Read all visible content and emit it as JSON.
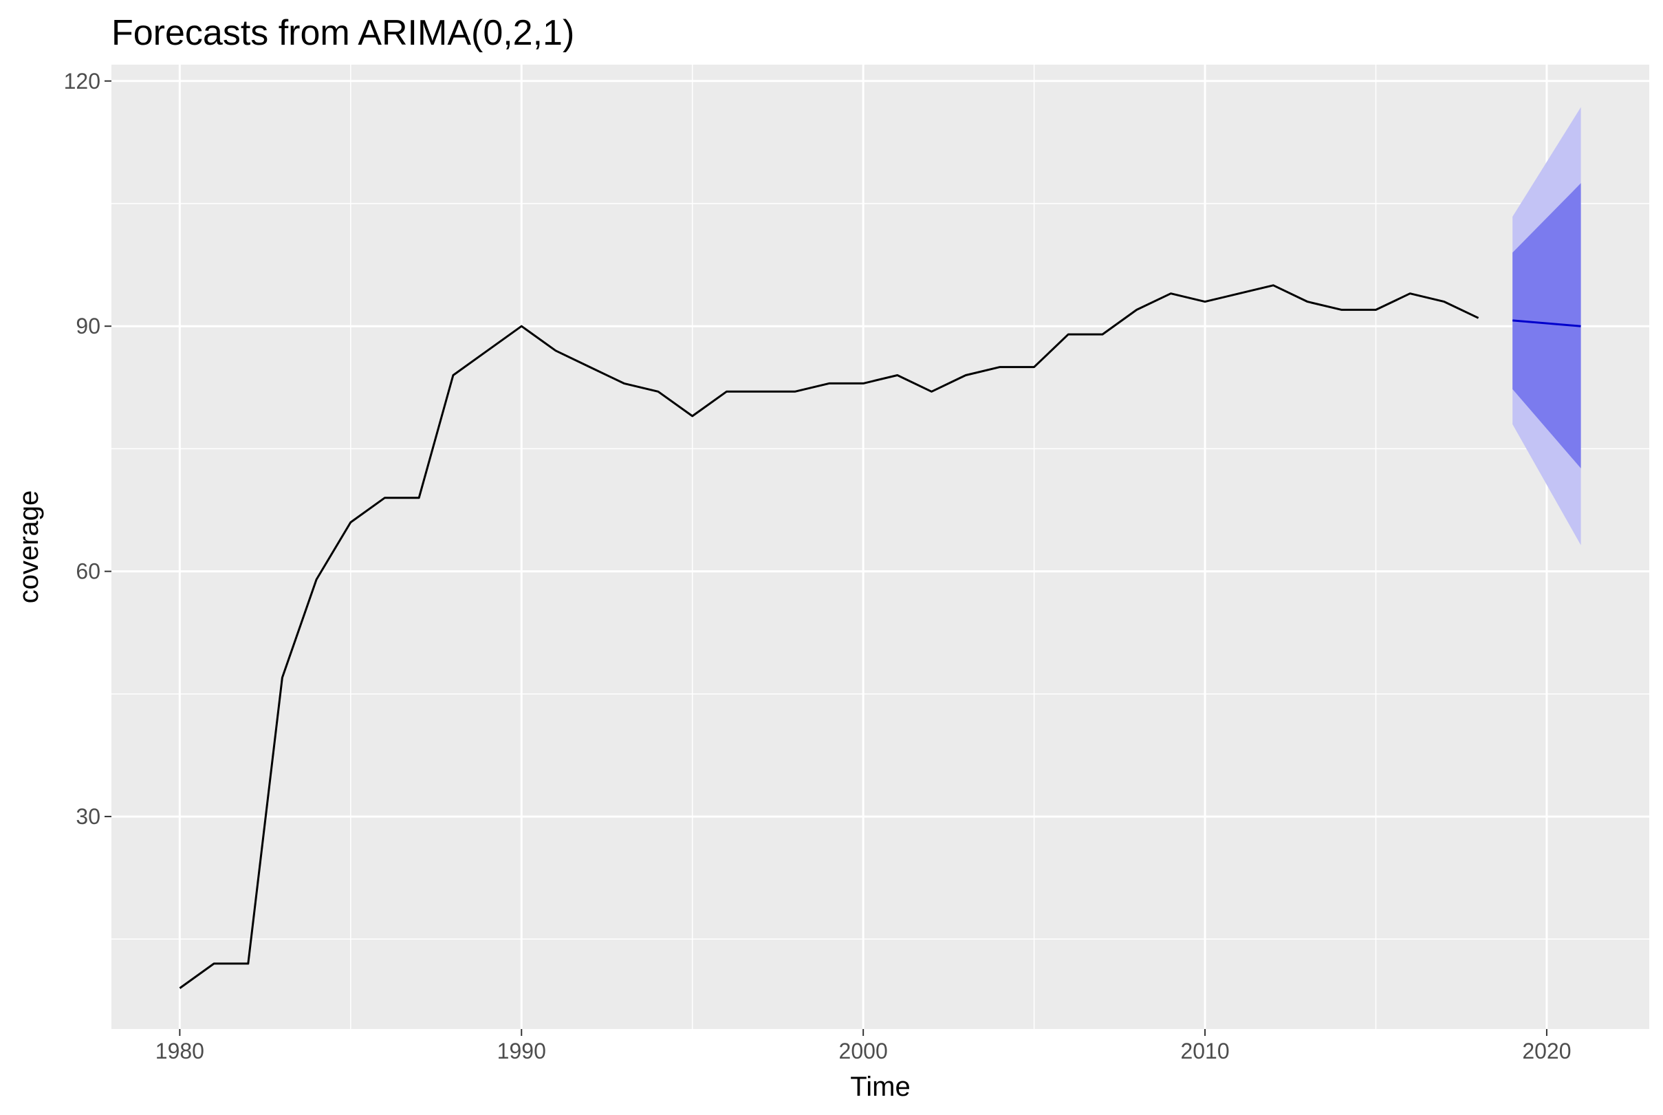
{
  "chart_data": {
    "type": "line",
    "title": "Forecasts from ARIMA(0,2,1)",
    "xlabel": "Time",
    "ylabel": "coverage",
    "xlim": [
      1978,
      2023
    ],
    "ylim": [
      4,
      122
    ],
    "x_ticks": [
      1980,
      1990,
      2000,
      2010,
      2020
    ],
    "y_ticks": [
      30,
      60,
      90,
      120
    ],
    "grid": true,
    "colors": {
      "panel_background": "#EBEBEB",
      "grid_line": "#FFFFFF",
      "history_line": "#000000",
      "forecast_line": "#0000CC",
      "interval_80": "#7B7BEE",
      "interval_95": "#C3C3F5",
      "tick_label": "#4D4D4D"
    },
    "series": [
      {
        "x": [
          1980,
          1981,
          1982,
          1983,
          1984,
          1985,
          1986,
          1987,
          1988,
          1989,
          1990,
          1991,
          1992,
          1993,
          1994,
          1995,
          1996,
          1997,
          1998,
          1999,
          2000,
          2001,
          2002,
          2003,
          2004,
          2005,
          2006,
          2007,
          2008,
          2009,
          2010,
          2011,
          2012,
          2013,
          2014,
          2015,
          2016,
          2017,
          2018
        ],
        "values": [
          9,
          12,
          12,
          47,
          59,
          66,
          69,
          69,
          84,
          87,
          90,
          87,
          85,
          83,
          82,
          79,
          82,
          82,
          82,
          83,
          83,
          84,
          82,
          84,
          85,
          85,
          89,
          89,
          92,
          94,
          93,
          94,
          95,
          93,
          92,
          92,
          94,
          93,
          91
        ]
      }
    ],
    "forecast": {
      "x": [
        2019,
        2021
      ],
      "mean": [
        90.7,
        90.0
      ],
      "lo80": [
        82.3,
        72.6
      ],
      "hi80": [
        99.0,
        107.5
      ],
      "lo95": [
        78.0,
        63.2
      ],
      "hi95": [
        103.4,
        116.8
      ]
    }
  }
}
